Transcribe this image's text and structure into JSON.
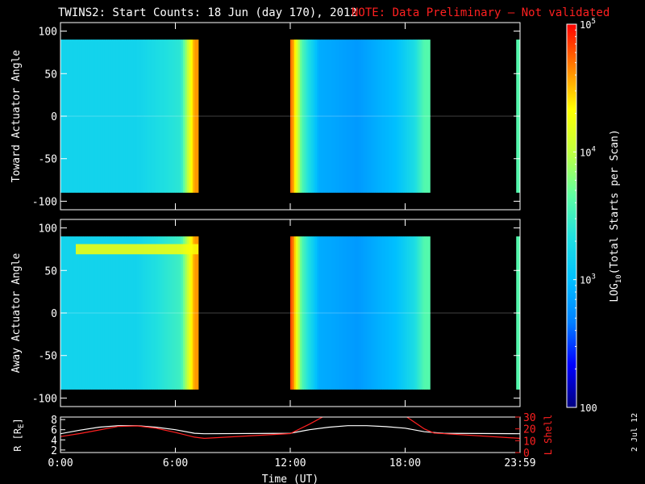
{
  "title": {
    "main": "TWINS2: Start Counts: 18 Jun (day 170), 2012",
    "note": "NOTE: Data Preliminary – Not validated"
  },
  "colors": {
    "background": "#000000",
    "note": "#ff2020",
    "colorbar": [
      "#000080",
      "#0000ff",
      "#0080ff",
      "#00c0ff",
      "#20e0e0",
      "#60ffa0",
      "#c0ff40",
      "#ffff00",
      "#ff8000",
      "#ff0000"
    ]
  },
  "stamp": "2 Jul 12",
  "chart_data": [
    {
      "type": "heatmap",
      "panel": "top",
      "ylabel": "Toward Actuator Angle",
      "ylim": [
        -110,
        110
      ],
      "yticks": [
        "100",
        "50",
        "0",
        "-50",
        "-100"
      ],
      "xlim": [
        0,
        24
      ],
      "data_y_range": [
        -90,
        90
      ],
      "coverage_hours": [
        [
          0.0,
          7.2
        ],
        [
          12.0,
          19.3
        ],
        [
          23.8,
          24.0
        ]
      ],
      "log10_counts_by_hour": [
        {
          "t": 0.5,
          "v": 3.2
        },
        {
          "t": 2.0,
          "v": 3.2
        },
        {
          "t": 4.0,
          "v": 3.2
        },
        {
          "t": 6.3,
          "v": 3.4
        },
        {
          "t": 7.0,
          "v": 4.6
        },
        {
          "t": 12.1,
          "v": 4.7
        },
        {
          "t": 12.6,
          "v": 3.6
        },
        {
          "t": 13.5,
          "v": 2.9
        },
        {
          "t": 15.5,
          "v": 2.8
        },
        {
          "t": 17.5,
          "v": 3.0
        },
        {
          "t": 18.5,
          "v": 3.3
        },
        {
          "t": 19.0,
          "v": 3.6
        }
      ]
    },
    {
      "type": "heatmap",
      "panel": "middle",
      "ylabel": "Away Actuator Angle",
      "ylim": [
        -110,
        110
      ],
      "yticks": [
        "100",
        "50",
        "0",
        "-50",
        "-100"
      ],
      "xlim": [
        0,
        24
      ],
      "data_y_range": [
        -90,
        90
      ],
      "coverage_hours": [
        [
          0.0,
          7.2
        ],
        [
          12.0,
          19.3
        ],
        [
          23.8,
          24.0
        ]
      ],
      "log10_counts_by_hour": [
        {
          "t": 0.5,
          "v": 3.2
        },
        {
          "t": 2.0,
          "v": 3.2
        },
        {
          "t": 4.0,
          "v": 3.2
        },
        {
          "t": 6.3,
          "v": 3.5
        },
        {
          "t": 7.0,
          "v": 4.6
        },
        {
          "t": 12.1,
          "v": 4.8
        },
        {
          "t": 12.6,
          "v": 3.6
        },
        {
          "t": 13.5,
          "v": 2.9
        },
        {
          "t": 15.5,
          "v": 2.8
        },
        {
          "t": 17.5,
          "v": 3.0
        },
        {
          "t": 18.5,
          "v": 3.3
        },
        {
          "t": 19.0,
          "v": 3.6
        }
      ],
      "high_angle_band": {
        "angle": 75,
        "hours": [
          0.8,
          7.2
        ],
        "log10_counts": 4.3
      }
    },
    {
      "type": "colorbar",
      "label": "LOG10(Total Starts per Scan)",
      "label_parts": {
        "pre": "LOG",
        "sub": "10",
        "post": "(Total Starts per Scan)"
      },
      "scale": "log",
      "range": [
        100,
        100000
      ],
      "ticks": [
        {
          "value": 100000,
          "base": "10",
          "exp": "5"
        },
        {
          "value": 10000,
          "base": "10",
          "exp": "4"
        },
        {
          "value": 1000,
          "base": "10",
          "exp": "3"
        },
        {
          "value": 100,
          "label": "100"
        }
      ]
    },
    {
      "type": "line",
      "panel": "bottom",
      "xlabel": "Time (UT)",
      "xlim": [
        0,
        24
      ],
      "xticks": [
        "0:00",
        "6:00",
        "12:00",
        "18:00",
        "23:59"
      ],
      "left_axis": {
        "label": "R [RE]",
        "label_main": "R [R",
        "label_sub": "E",
        "label_end": "]",
        "ylim": [
          1.5,
          8.5
        ],
        "ticks": [
          "8",
          "6",
          "4",
          "2"
        ]
      },
      "right_axis": {
        "label": "L Shell",
        "ylim": [
          0,
          30
        ],
        "ticks": [
          "30",
          "20",
          "10",
          "0"
        ]
      },
      "series": [
        {
          "axis": "left",
          "color": "#ffffff",
          "points": [
            [
              0,
              5.2
            ],
            [
              1,
              5.9
            ],
            [
              2,
              6.5
            ],
            [
              3,
              6.8
            ],
            [
              4,
              6.8
            ],
            [
              5,
              6.5
            ],
            [
              6,
              6.0
            ],
            [
              7,
              5.3
            ],
            [
              7.5,
              5.2
            ],
            [
              12,
              5.3
            ],
            [
              13,
              6.0
            ],
            [
              14,
              6.5
            ],
            [
              15,
              6.8
            ],
            [
              16,
              6.8
            ],
            [
              17,
              6.6
            ],
            [
              18,
              6.3
            ],
            [
              19,
              5.6
            ],
            [
              20,
              5.3
            ],
            [
              24,
              5.2
            ]
          ]
        },
        {
          "axis": "right",
          "color": "#ff2020",
          "points": [
            [
              0,
              13.5
            ],
            [
              1,
              16
            ],
            [
              2,
              19
            ],
            [
              3,
              22
            ],
            [
              4,
              22.5
            ],
            [
              5,
              20.5
            ],
            [
              6,
              17
            ],
            [
              7,
              13
            ],
            [
              7.5,
              12
            ],
            [
              12,
              16
            ],
            [
              13,
              24
            ],
            [
              13.8,
              31
            ]
          ]
        },
        {
          "axis": "right",
          "color": "#ff2020",
          "points": [
            [
              18,
              31
            ],
            [
              19,
              20
            ],
            [
              19.5,
              16.5
            ],
            [
              24,
              12
            ]
          ]
        }
      ]
    }
  ]
}
